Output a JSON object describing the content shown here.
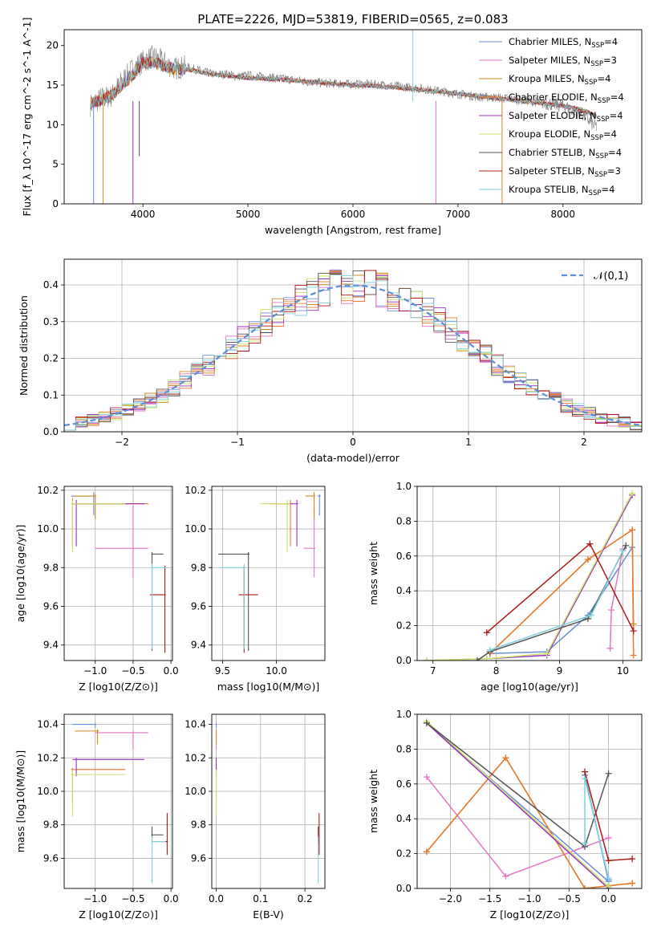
{
  "figure_title": "PLATE=2226, MJD=53819, FIBERID=0565, z=0.083",
  "model_colors": [
    "#6a8fd6",
    "#e377c2",
    "#d08a1e",
    "#e9792f",
    "#9b30c0",
    "#c9e36a",
    "#555555",
    "#b01818",
    "#7fd2dc"
  ],
  "legend": [
    {
      "name": "Chabrier MILES",
      "nssp": "4"
    },
    {
      "name": "Salpeter MILES",
      "nssp": "3"
    },
    {
      "name": "Kroupa MILES",
      "nssp": "4"
    },
    {
      "name": "Chabrier ELODIE",
      "nssp": "4"
    },
    {
      "name": "Salpeter ELODIE",
      "nssp": "4"
    },
    {
      "name": "Kroupa ELODIE",
      "nssp": "4"
    },
    {
      "name": "Chabrier STELIB",
      "nssp": "4"
    },
    {
      "name": "Salpeter STELIB",
      "nssp": "3"
    },
    {
      "name": "Kroupa STELIB",
      "nssp": "4"
    }
  ],
  "chart_data": [
    {
      "id": "spectrum",
      "type": "line",
      "title": "PLATE=2226, MJD=53819, FIBERID=0565, z=0.083",
      "xlabel": "wavelength [Angstrom, rest frame]",
      "ylabel": "Flux [f_λ 10^-17 erg cm^-2 s^-1 A^-1]",
      "xlim": [
        3250,
        8750
      ],
      "ylim": [
        0,
        22
      ],
      "xticks": [
        4000,
        5000,
        6000,
        7000,
        8000
      ],
      "yticks": [
        0,
        5,
        10,
        15,
        20
      ],
      "x": [
        3500,
        3600,
        3700,
        3800,
        3900,
        4000,
        4100,
        4200,
        4300,
        4400,
        4500,
        4600,
        4700,
        4800,
        4900,
        5000,
        5200,
        5400,
        5600,
        5800,
        6000,
        6200,
        6400,
        6600,
        6800,
        7000,
        7200,
        7400,
        7600,
        7800,
        8000,
        8200,
        8300
      ],
      "data_y": [
        12.5,
        13.3,
        13.6,
        15.5,
        17.0,
        18.0,
        18.6,
        17.9,
        17.1,
        17.3,
        17.0,
        16.6,
        16.3,
        16.4,
        16.1,
        16.2,
        16.0,
        15.7,
        15.4,
        15.2,
        15.1,
        15.1,
        14.9,
        14.6,
        14.3,
        13.9,
        13.5,
        13.4,
        13.1,
        12.8,
        12.4,
        11.2,
        9.8
      ],
      "model_y": [
        12.8,
        13.1,
        13.7,
        15.0,
        16.2,
        17.8,
        17.9,
        17.4,
        17.0,
        17.0,
        16.8,
        16.5,
        16.3,
        16.2,
        16.0,
        15.9,
        15.8,
        15.6,
        15.4,
        15.2,
        15.0,
        14.9,
        14.7,
        14.5,
        14.2,
        13.9,
        13.6,
        13.3,
        13.0,
        12.7,
        12.4,
        11.8,
        11.2
      ]
    },
    {
      "id": "residual_hist",
      "type": "area",
      "xlabel": "(data-model)/error",
      "ylabel": "Normed distribution",
      "xlim": [
        -2.5,
        2.5
      ],
      "ylim": [
        0,
        0.47
      ],
      "xticks": [
        -2,
        -1,
        0,
        1,
        2
      ],
      "yticks": [
        0,
        0.1,
        0.2,
        0.3,
        0.4
      ],
      "reference_curve": {
        "name": "𝒩(0,1)",
        "mean": 0,
        "sigma": 1
      },
      "bin_width": 0.1
    },
    {
      "id": "age_vs_Z",
      "type": "scatter",
      "xlabel": "Z [log10(Z/Z⊙)]",
      "ylabel": "age  [log10(age/yr)]",
      "xlim": [
        -1.41,
        0.02
      ],
      "ylim": [
        9.32,
        10.22
      ],
      "xticks": [
        -1.0,
        -0.5,
        0.0
      ],
      "yticks": [
        9.4,
        9.6,
        9.8,
        10.0,
        10.2
      ],
      "points": [
        {
          "x": -1.02,
          "y": 10.17,
          "xerr": [
            0.3,
            0.02
          ],
          "yerr": [
            0.1,
            0.02
          ],
          "model": 0
        },
        {
          "x": -0.5,
          "y": 9.9,
          "xerr": [
            0.5,
            0.2
          ],
          "yerr": [
            0.15,
            0.22
          ],
          "model": 1
        },
        {
          "x": -1.0,
          "y": 10.17,
          "xerr": [
            0.28,
            0.01
          ],
          "yerr": [
            0.12,
            0.01
          ],
          "model": 2
        },
        {
          "x": -1.3,
          "y": 10.13,
          "xerr": [
            0.02,
            1.0
          ],
          "yerr": [
            0.22,
            0.03
          ],
          "model": 3
        },
        {
          "x": -1.25,
          "y": 10.13,
          "xerr": [
            0.05,
            0.9
          ],
          "yerr": [
            0.22,
            0.02
          ],
          "model": 4
        },
        {
          "x": -1.3,
          "y": 10.13,
          "xerr": [
            0.02,
            0.7
          ],
          "yerr": [
            0.25,
            0.02
          ],
          "model": 5
        },
        {
          "x": -0.25,
          "y": 9.87,
          "xerr": [
            0.01,
            0.15
          ],
          "yerr": [
            0.5,
            0.01
          ],
          "model": 6
        },
        {
          "x": -0.08,
          "y": 9.66,
          "xerr": [
            0.2,
            0.01
          ],
          "yerr": [
            0.3,
            0.15
          ],
          "model": 7
        },
        {
          "x": -0.25,
          "y": 9.8,
          "xerr": [
            0.01,
            0.18
          ],
          "yerr": [
            0.42,
            0.02
          ],
          "model": 8
        }
      ]
    },
    {
      "id": "age_vs_mass",
      "type": "scatter",
      "xlabel": "mass [log10(M/M⊙)]",
      "ylabel": "",
      "xlim": [
        9.4,
        10.45
      ],
      "ylim": [
        9.32,
        10.22
      ],
      "xticks": [
        9.5,
        10.0
      ],
      "yticks": [
        9.4,
        9.6,
        9.8,
        10.0,
        10.2
      ],
      "points": [
        {
          "x": 10.4,
          "y": 10.17,
          "xerr": [
            0.02,
            0.01
          ],
          "yerr": [
            0.1,
            0.01
          ],
          "model": 0
        },
        {
          "x": 10.35,
          "y": 9.9,
          "xerr": [
            0.1,
            0.01
          ],
          "yerr": [
            0.15,
            0.22
          ],
          "model": 1
        },
        {
          "x": 10.35,
          "y": 10.17,
          "xerr": [
            0.08,
            0.01
          ],
          "yerr": [
            0.12,
            0.02
          ],
          "model": 2
        },
        {
          "x": 10.13,
          "y": 10.13,
          "xerr": [
            0.2,
            0.01
          ],
          "yerr": [
            0.22,
            0.02
          ],
          "model": 3
        },
        {
          "x": 10.19,
          "y": 10.13,
          "xerr": [
            0.1,
            0.01
          ],
          "yerr": [
            0.22,
            0.02
          ],
          "model": 4
        },
        {
          "x": 10.1,
          "y": 10.13,
          "xerr": [
            0.25,
            0.03
          ],
          "yerr": [
            0.25,
            0.02
          ],
          "model": 5
        },
        {
          "x": 9.74,
          "y": 9.87,
          "xerr": [
            0.28,
            0.01
          ],
          "yerr": [
            0.5,
            0.01
          ],
          "model": 6
        },
        {
          "x": 9.7,
          "y": 9.66,
          "xerr": [
            0.05,
            0.13
          ],
          "yerr": [
            0.3,
            0.15
          ],
          "model": 7
        },
        {
          "x": 9.7,
          "y": 9.8,
          "xerr": [
            0.22,
            0.01
          ],
          "yerr": [
            0.42,
            0.02
          ],
          "model": 8
        }
      ]
    },
    {
      "id": "massweight_vs_age",
      "type": "line",
      "xlabel": "age  [log10(age/yr)]",
      "ylabel": "mass weight",
      "xlim": [
        6.75,
        10.3
      ],
      "ylim": [
        0,
        1
      ],
      "xticks": [
        7,
        8,
        9,
        10
      ],
      "yticks": [
        0.0,
        0.2,
        0.4,
        0.6,
        0.8,
        1.0
      ],
      "series": [
        {
          "model": 0,
          "x": [
            7.9,
            8.8,
            9.45,
            10.15
          ],
          "y": [
            0.04,
            0.05,
            0.26,
            0.65
          ]
        },
        {
          "model": 1,
          "x": [
            9.8,
            9.82,
            10.0
          ],
          "y": [
            0.07,
            0.29,
            0.64
          ]
        },
        {
          "model": 2,
          "x": [
            7.9,
            9.45,
            10.15,
            10.17
          ],
          "y": [
            0.04,
            0.58,
            0.75,
            0.21
          ]
        },
        {
          "model": 3,
          "x": [
            7.9,
            9.45,
            10.15,
            10.17
          ],
          "y": [
            0.04,
            0.58,
            0.75,
            0.03
          ]
        },
        {
          "model": 4,
          "x": [
            6.9,
            7.85,
            8.8,
            10.15
          ],
          "y": [
            0.0,
            0.01,
            0.03,
            0.95
          ]
        },
        {
          "model": 5,
          "x": [
            6.9,
            7.85,
            8.8,
            10.15
          ],
          "y": [
            0.0,
            0.01,
            0.04,
            0.96
          ]
        },
        {
          "model": 6,
          "x": [
            7.7,
            7.9,
            9.45,
            10.05
          ],
          "y": [
            0.0,
            0.05,
            0.24,
            0.66
          ]
        },
        {
          "model": 7,
          "x": [
            7.85,
            9.48,
            10.17
          ],
          "y": [
            0.16,
            0.67,
            0.17
          ]
        },
        {
          "model": 8,
          "x": [
            7.9,
            9.5,
            10.0
          ],
          "y": [
            0.06,
            0.26,
            0.63
          ]
        }
      ]
    },
    {
      "id": "mass_vs_Z",
      "type": "scatter",
      "xlabel": "Z [log10(Z/Z⊙)]",
      "ylabel": "mass [log10(M/M⊙)]",
      "xlim": [
        -1.41,
        0.02
      ],
      "ylim": [
        9.42,
        10.46
      ],
      "xticks": [
        -1.0,
        -0.5,
        0.0
      ],
      "yticks": [
        9.6,
        9.8,
        10.0,
        10.2,
        10.4
      ],
      "points": [
        {
          "x": -1.0,
          "y": 10.4,
          "xerr": [
            0.3,
            0.01
          ],
          "yerr": [
            0.02,
            0.01
          ],
          "model": 0
        },
        {
          "x": -0.5,
          "y": 10.35,
          "xerr": [
            0.5,
            0.2
          ],
          "yerr": [
            0.1,
            0.01
          ],
          "model": 1
        },
        {
          "x": -0.97,
          "y": 10.36,
          "xerr": [
            0.3,
            0.02
          ],
          "yerr": [
            0.08,
            0.01
          ],
          "model": 2
        },
        {
          "x": -1.3,
          "y": 10.13,
          "xerr": [
            0.02,
            0.7
          ],
          "yerr": [
            0.2,
            0.01
          ],
          "model": 3
        },
        {
          "x": -1.25,
          "y": 10.19,
          "xerr": [
            0.05,
            0.9
          ],
          "yerr": [
            0.1,
            0.01
          ],
          "model": 4
        },
        {
          "x": -1.3,
          "y": 10.1,
          "xerr": [
            0.02,
            0.7
          ],
          "yerr": [
            0.25,
            0.03
          ],
          "model": 5
        },
        {
          "x": -0.25,
          "y": 9.74,
          "xerr": [
            0.01,
            0.15
          ],
          "yerr": [
            0.05,
            0.05
          ],
          "model": 6
        },
        {
          "x": -0.05,
          "y": 9.7,
          "xerr": [
            0.2,
            0.01
          ],
          "yerr": [
            0.08,
            0.17
          ],
          "model": 7
        },
        {
          "x": -0.25,
          "y": 9.7,
          "xerr": [
            0.01,
            0.18
          ],
          "yerr": [
            0.25,
            0.03
          ],
          "model": 8
        }
      ]
    },
    {
      "id": "mass_vs_ebv",
      "type": "scatter",
      "xlabel": "E(B-V)",
      "ylabel": "",
      "xlim": [
        -0.01,
        0.245
      ],
      "ylim": [
        9.42,
        10.46
      ],
      "xticks": [
        0.0,
        0.1,
        0.2
      ],
      "yticks": [
        9.6,
        9.8,
        10.0,
        10.2,
        10.4
      ],
      "points": [
        {
          "x": 0.0,
          "y": 10.4,
          "yerr": [
            0.02,
            0.01
          ],
          "model": 0
        },
        {
          "x": 0.0,
          "y": 10.35,
          "yerr": [
            0.1,
            0.01
          ],
          "model": 1
        },
        {
          "x": 0.0,
          "y": 10.36,
          "yerr": [
            0.08,
            0.01
          ],
          "model": 2
        },
        {
          "x": 0.0,
          "y": 10.13,
          "yerr": [
            0.2,
            0.01
          ],
          "model": 3
        },
        {
          "x": 0.0,
          "y": 10.19,
          "yerr": [
            0.1,
            0.01
          ],
          "model": 4
        },
        {
          "x": 0.0,
          "y": 10.1,
          "yerr": [
            0.25,
            0.03
          ],
          "model": 5
        },
        {
          "x": 0.23,
          "y": 9.74,
          "yerr": [
            0.05,
            0.05
          ],
          "model": 6
        },
        {
          "x": 0.232,
          "y": 9.7,
          "yerr": [
            0.08,
            0.17
          ],
          "model": 7
        },
        {
          "x": 0.23,
          "y": 9.7,
          "yerr": [
            0.25,
            0.03
          ],
          "model": 8
        }
      ]
    },
    {
      "id": "massweight_vs_Z",
      "type": "line",
      "xlabel": "Z [log10(Z/Z⊙)]",
      "ylabel": "mass weight",
      "xlim": [
        -2.42,
        0.42
      ],
      "ylim": [
        0,
        1
      ],
      "xticks": [
        -2.0,
        -1.5,
        -1.0,
        -0.5,
        0.0
      ],
      "yticks": [
        0.0,
        0.2,
        0.4,
        0.6,
        0.8,
        1.0
      ],
      "series": [
        {
          "model": 0,
          "x": [
            -2.3,
            0.0,
            -0.3,
            0.0
          ],
          "y": [
            0.95,
            0.04,
            0.65,
            0.05
          ]
        },
        {
          "model": 1,
          "x": [
            -2.3,
            -1.3,
            0.0
          ],
          "y": [
            0.64,
            0.07,
            0.29
          ]
        },
        {
          "model": 2,
          "x": [
            -2.3,
            -1.3,
            -0.3,
            0.3
          ],
          "y": [
            0.21,
            0.75,
            0.0,
            0.03
          ]
        },
        {
          "model": 3,
          "x": [
            -2.3,
            -1.3,
            -0.3,
            0.3
          ],
          "y": [
            0.21,
            0.75,
            0.0,
            0.03
          ]
        },
        {
          "model": 4,
          "x": [
            -2.3,
            0.0,
            0.0
          ],
          "y": [
            0.95,
            0.0,
            0.01
          ]
        },
        {
          "model": 5,
          "x": [
            -2.3,
            0.0,
            0.0
          ],
          "y": [
            0.96,
            0.01,
            0.02
          ]
        },
        {
          "model": 6,
          "x": [
            -2.3,
            -0.3,
            0.0
          ],
          "y": [
            0.95,
            0.24,
            0.66
          ]
        },
        {
          "model": 7,
          "x": [
            -0.3,
            0.0,
            0.3
          ],
          "y": [
            0.67,
            0.16,
            0.17
          ]
        },
        {
          "model": 8,
          "x": [
            -0.3,
            -0.3,
            0.0
          ],
          "y": [
            0.26,
            0.63,
            0.06
          ]
        }
      ]
    }
  ]
}
